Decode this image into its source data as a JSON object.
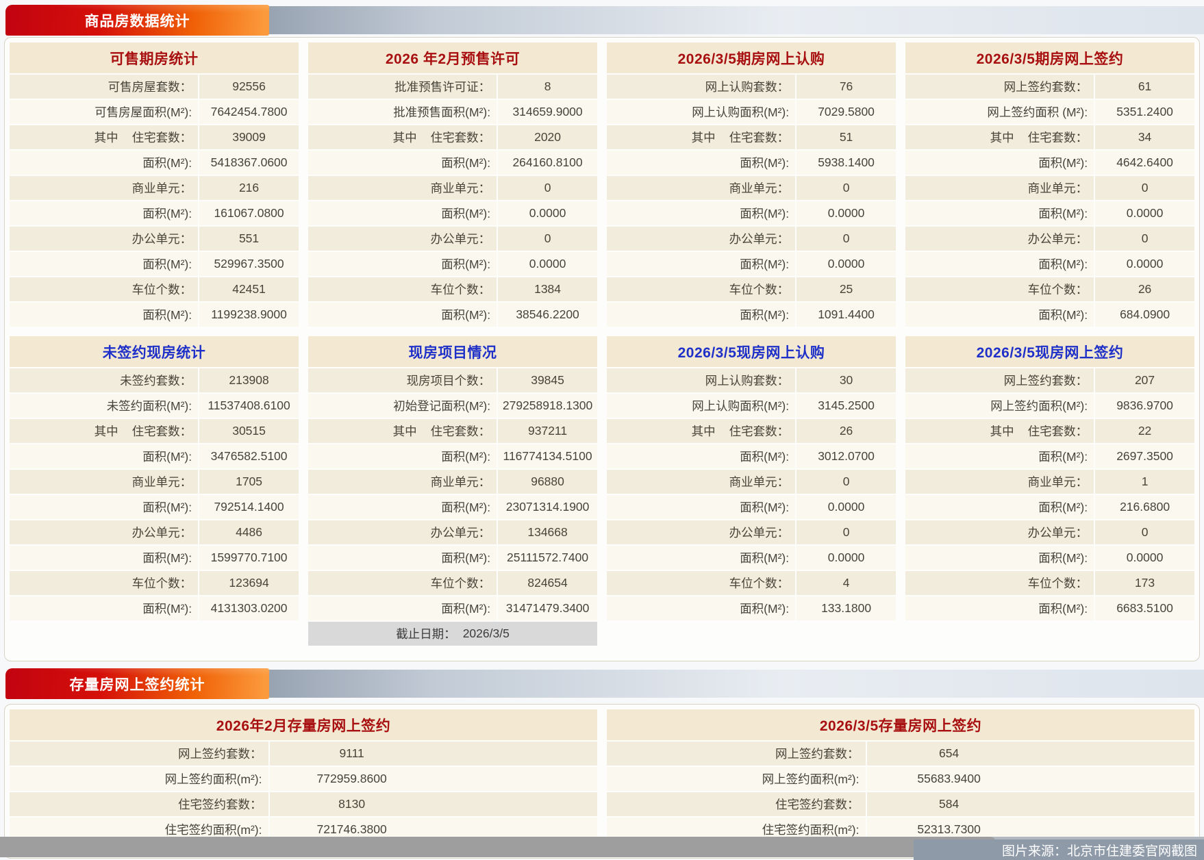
{
  "theme": {
    "page_bg": "#f6f8f9",
    "banner_red1": "#c20310",
    "banner_red2": "#d5100a",
    "banner_orange1": "#f06207",
    "banner_orange2": "#fb9a3c",
    "strip_dark": "#98a3b2",
    "strip_light": "#e9edf2",
    "container_border": "#d9d3c5",
    "panel_header_bg": "#f3e9d2",
    "header_red": "#a80f10",
    "header_blue": "#1f30c9",
    "row_odd": "#f2ecdc",
    "row_even": "#faf8ef",
    "cutoff_bg": "#d9d9d9",
    "text": "#474439",
    "track": "#b2b8c0",
    "thumb": "#9e9e9e",
    "credit_bg": "#8f9aa9"
  },
  "sections": {
    "commodity_banner": "商品房数据统计",
    "stock_banner": "存量房网上签约统计"
  },
  "footer": {
    "credit": "图片来源：北京市住建委官网截图"
  },
  "commodity_panels": [
    {
      "title": "可售期房统计",
      "color": "red",
      "rows": [
        {
          "l": "可售房屋套数：",
          "v": "92556"
        },
        {
          "l": "可售房屋面积(M²):",
          "v": "7642454.7800"
        },
        {
          "p": "其中",
          "l": "住宅套数：",
          "v": "39009"
        },
        {
          "l": "面积(M²):",
          "v": "5418367.0600"
        },
        {
          "l": "商业单元：",
          "v": "216"
        },
        {
          "l": "面积(M²):",
          "v": "161067.0800"
        },
        {
          "l": "办公单元：",
          "v": "551"
        },
        {
          "l": "面积(M²):",
          "v": "529967.3500"
        },
        {
          "l": "车位个数：",
          "v": "42451"
        },
        {
          "l": "面积(M²):",
          "v": "1199238.9000"
        }
      ]
    },
    {
      "title": "2026 年2月预售许可",
      "color": "red",
      "rows": [
        {
          "l": "批准预售许可证：",
          "v": "8"
        },
        {
          "l": "批准预售面积(M²):",
          "v": "314659.9000"
        },
        {
          "p": "其中",
          "l": "住宅套数：",
          "v": "2020"
        },
        {
          "l": "面积(M²):",
          "v": "264160.8100"
        },
        {
          "l": "商业单元：",
          "v": "0"
        },
        {
          "l": "面积(M²):",
          "v": "0.0000"
        },
        {
          "l": "办公单元：",
          "v": "0"
        },
        {
          "l": "面积(M²):",
          "v": "0.0000"
        },
        {
          "l": "车位个数：",
          "v": "1384"
        },
        {
          "l": "面积(M²):",
          "v": "38546.2200"
        }
      ]
    },
    {
      "title": "2026/3/5期房网上认购",
      "color": "red",
      "rows": [
        {
          "l": "网上认购套数：",
          "v": "76"
        },
        {
          "l": "网上认购面积(M²):",
          "v": "7029.5800"
        },
        {
          "p": "其中",
          "l": "住宅套数：",
          "v": "51"
        },
        {
          "l": "面积(M²):",
          "v": "5938.1400"
        },
        {
          "l": "商业单元：",
          "v": "0"
        },
        {
          "l": "面积(M²):",
          "v": "0.0000"
        },
        {
          "l": "办公单元：",
          "v": "0"
        },
        {
          "l": "面积(M²):",
          "v": "0.0000"
        },
        {
          "l": "车位个数：",
          "v": "25"
        },
        {
          "l": "面积(M²):",
          "v": "1091.4400"
        }
      ]
    },
    {
      "title": "2026/3/5期房网上签约",
      "color": "red",
      "rows": [
        {
          "l": "网上签约套数：",
          "v": "61"
        },
        {
          "l": "网上签约面积 (M²):",
          "v": "5351.2400"
        },
        {
          "p": "其中",
          "l": "住宅套数：",
          "v": "34"
        },
        {
          "l": "面积(M²):",
          "v": "4642.6400"
        },
        {
          "l": "商业单元：",
          "v": "0"
        },
        {
          "l": "面积(M²):",
          "v": "0.0000"
        },
        {
          "l": "办公单元：",
          "v": "0"
        },
        {
          "l": "面积(M²):",
          "v": "0.0000"
        },
        {
          "l": "车位个数：",
          "v": "26"
        },
        {
          "l": "面积(M²):",
          "v": "684.0900"
        }
      ]
    },
    {
      "title": "未签约现房统计",
      "color": "blue",
      "rows": [
        {
          "l": "未签约套数：",
          "v": "213908"
        },
        {
          "l": "未签约面积(M²):",
          "v": "11537408.6100"
        },
        {
          "p": "其中",
          "l": "住宅套数：",
          "v": "30515"
        },
        {
          "l": "面积(M²):",
          "v": "3476582.5100"
        },
        {
          "l": "商业单元：",
          "v": "1705"
        },
        {
          "l": "面积(M²):",
          "v": "792514.1400"
        },
        {
          "l": "办公单元：",
          "v": "4486"
        },
        {
          "l": "面积(M²):",
          "v": "1599770.7100"
        },
        {
          "l": "车位个数：",
          "v": "123694"
        },
        {
          "l": "面积(M²):",
          "v": "4131303.0200"
        }
      ]
    },
    {
      "title": "现房项目情况",
      "color": "blue",
      "rows": [
        {
          "l": "现房项目个数：",
          "v": "39845"
        },
        {
          "l": "初始登记面积(M²):",
          "v": "279258918.1300"
        },
        {
          "p": "其中",
          "l": "住宅套数：",
          "v": "937211"
        },
        {
          "l": "面积(M²):",
          "v": "116774134.5100"
        },
        {
          "l": "商业单元：",
          "v": "96880"
        },
        {
          "l": "面积(M²):",
          "v": "23071314.1900"
        },
        {
          "l": "办公单元：",
          "v": "134668"
        },
        {
          "l": "面积(M²):",
          "v": "25111572.7400"
        },
        {
          "l": "车位个数：",
          "v": "824654"
        },
        {
          "l": "面积(M²):",
          "v": "31471479.3400"
        }
      ],
      "footer": {
        "label": "截止日期：",
        "value": "2026/3/5"
      }
    },
    {
      "title": "2026/3/5现房网上认购",
      "color": "blue",
      "rows": [
        {
          "l": "网上认购套数：",
          "v": "30"
        },
        {
          "l": "网上认购面积(M²):",
          "v": "3145.2500"
        },
        {
          "p": "其中",
          "l": "住宅套数：",
          "v": "26"
        },
        {
          "l": "面积(M²):",
          "v": "3012.0700"
        },
        {
          "l": "商业单元：",
          "v": "0"
        },
        {
          "l": "面积(M²):",
          "v": "0.0000"
        },
        {
          "l": "办公单元：",
          "v": "0"
        },
        {
          "l": "面积(M²):",
          "v": "0.0000"
        },
        {
          "l": "车位个数：",
          "v": "4"
        },
        {
          "l": "面积(M²):",
          "v": "133.1800"
        }
      ]
    },
    {
      "title": "2026/3/5现房网上签约",
      "color": "blue",
      "rows": [
        {
          "l": "网上签约套数：",
          "v": "207"
        },
        {
          "l": "网上签约面积(M²):",
          "v": "9836.9700"
        },
        {
          "p": "其中",
          "l": "住宅套数：",
          "v": "22"
        },
        {
          "l": "面积(M²):",
          "v": "2697.3500"
        },
        {
          "l": "商业单元：",
          "v": "1"
        },
        {
          "l": "面积(M²):",
          "v": "216.6800"
        },
        {
          "l": "办公单元：",
          "v": "0"
        },
        {
          "l": "面积(M²):",
          "v": "0.0000"
        },
        {
          "l": "车位个数：",
          "v": "173"
        },
        {
          "l": "面积(M²):",
          "v": "6683.5100"
        }
      ]
    }
  ],
  "stock_panels": [
    {
      "title": "2026年2月存量房网上签约",
      "color": "red",
      "rows": [
        {
          "l": "网上签约套数：",
          "v": "9111"
        },
        {
          "l": "网上签约面积(m²):",
          "v": "772959.8600"
        },
        {
          "l": "住宅签约套数：",
          "v": "8130"
        },
        {
          "l": "住宅签约面积(m²):",
          "v": "721746.3800"
        }
      ]
    },
    {
      "title": "2026/3/5存量房网上签约",
      "color": "red",
      "rows": [
        {
          "l": "网上签约套数：",
          "v": "654"
        },
        {
          "l": "网上签约面积(m²):",
          "v": "55683.9400"
        },
        {
          "l": "住宅签约套数：",
          "v": "584"
        },
        {
          "l": "住宅签约面积(m²):",
          "v": "52313.7300"
        }
      ]
    }
  ]
}
